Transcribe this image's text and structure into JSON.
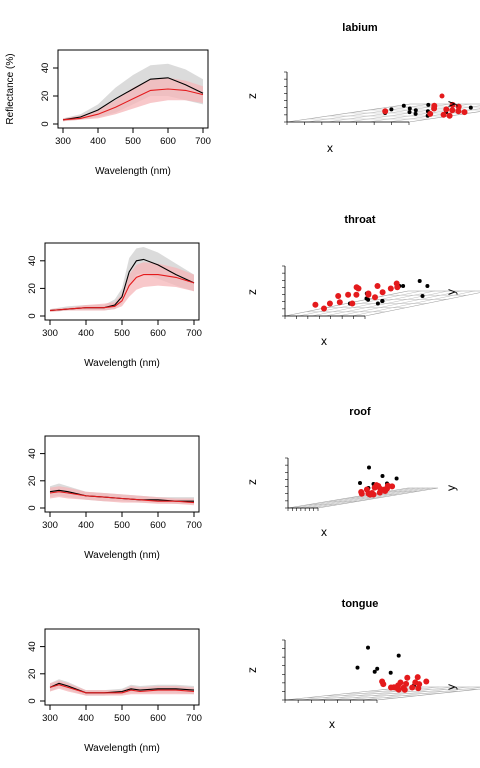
{
  "chart_data": [
    {
      "type": "area",
      "panel": "spectra",
      "xlabel": "Wavelength (nm)",
      "ylabel": "Reflectance (%)",
      "xticks": [
        300,
        400,
        500,
        600,
        700
      ],
      "yticks": [
        0,
        20,
        40
      ],
      "xlim": [
        300,
        700
      ],
      "ylim": [
        0,
        50
      ],
      "x": [
        300,
        350,
        400,
        450,
        500,
        550,
        600,
        650,
        700
      ],
      "series": [
        {
          "color": "#000000",
          "band": "#cfcfcf",
          "mean": [
            3,
            5,
            10,
            18,
            25,
            32,
            33,
            28,
            22
          ],
          "lower": [
            2,
            3,
            5,
            8,
            14,
            20,
            20,
            17,
            14
          ],
          "upper": [
            4,
            7,
            14,
            26,
            35,
            42,
            43,
            39,
            32
          ]
        },
        {
          "color": "#e41a1c",
          "band": "#f6b6b8",
          "mean": [
            3,
            4,
            7,
            12,
            18,
            24,
            25,
            24,
            21
          ],
          "lower": [
            2,
            3,
            4,
            7,
            11,
            15,
            17,
            17,
            15
          ],
          "upper": [
            4,
            6,
            10,
            17,
            26,
            32,
            33,
            31,
            27
          ]
        }
      ]
    },
    {
      "type": "scatter",
      "panel": "3d",
      "title": "labium",
      "axis_labels": {
        "x": "x",
        "y": "y",
        "z": "z"
      },
      "series": [
        {
          "color": "#000000",
          "points": [
            [
              0.05,
              0.9,
              0.0
            ],
            [
              0.15,
              0.7,
              0.0
            ],
            [
              0.2,
              0.95,
              0.0
            ],
            [
              0.25,
              0.75,
              0.0
            ],
            [
              0.3,
              0.5,
              0.0
            ],
            [
              0.35,
              0.85,
              0.0
            ],
            [
              0.4,
              0.65,
              0.0
            ],
            [
              0.45,
              0.55,
              0.0
            ],
            [
              0.5,
              0.9,
              0.0
            ],
            [
              0.55,
              0.6,
              0.0
            ],
            [
              0.6,
              0.45,
              0.0
            ],
            [
              0.7,
              0.8,
              0.0
            ],
            [
              0.75,
              0.55,
              0.0
            ],
            [
              0.8,
              0.35,
              0.0
            ]
          ]
        },
        {
          "color": "#e41a1c",
          "points": [
            [
              0.2,
              0.6,
              0.0
            ],
            [
              0.3,
              0.9,
              0.0
            ],
            [
              0.4,
              0.95,
              0.0
            ],
            [
              0.45,
              0.75,
              0.0
            ],
            [
              0.55,
              0.85,
              0.0
            ],
            [
              0.6,
              0.7,
              0.0
            ],
            [
              0.65,
              0.95,
              0.0
            ],
            [
              0.7,
              0.65,
              0.0
            ],
            [
              0.75,
              0.85,
              0.0
            ],
            [
              0.8,
              0.6,
              0.0
            ],
            [
              0.85,
              0.75,
              0.0
            ],
            [
              0.9,
              0.55,
              0.0
            ],
            [
              0.95,
              0.7,
              0.0
            ],
            [
              0.88,
              0.4,
              0.0
            ],
            [
              0.72,
              0.45,
              0.0
            ],
            [
              0.98,
              0.35,
              0.0
            ]
          ]
        }
      ]
    },
    {
      "type": "area",
      "panel": "spectra",
      "xlabel": "Wavelength (nm)",
      "xticks": [
        300,
        400,
        500,
        600,
        700
      ],
      "yticks": [
        0,
        20,
        40
      ],
      "xlim": [
        300,
        700
      ],
      "ylim": [
        0,
        50
      ],
      "x": [
        300,
        350,
        400,
        450,
        480,
        500,
        520,
        540,
        560,
        600,
        650,
        700
      ],
      "series": [
        {
          "color": "#000000",
          "band": "#cfcfcf",
          "mean": [
            4,
            5,
            6,
            6,
            8,
            14,
            32,
            40,
            41,
            37,
            30,
            24
          ],
          "lower": [
            3,
            4,
            4,
            4,
            5,
            9,
            22,
            30,
            31,
            27,
            22,
            18
          ],
          "upper": [
            5,
            7,
            8,
            8,
            12,
            20,
            42,
            49,
            50,
            46,
            38,
            30
          ]
        },
        {
          "color": "#e41a1c",
          "band": "#f6b6b8",
          "mean": [
            4,
            5,
            6,
            6,
            7,
            11,
            22,
            28,
            30,
            30,
            28,
            24
          ],
          "lower": [
            3,
            4,
            4,
            4,
            5,
            7,
            14,
            19,
            21,
            22,
            21,
            18
          ],
          "upper": [
            5,
            6,
            8,
            9,
            10,
            16,
            30,
            37,
            39,
            38,
            35,
            30
          ]
        }
      ]
    },
    {
      "type": "scatter",
      "panel": "3d",
      "title": "throat",
      "axis_labels": {
        "x": "x",
        "y": "y",
        "z": "z"
      },
      "series": [
        {
          "color": "#000000",
          "points": [
            [
              0.1,
              0.6,
              0.3
            ],
            [
              0.2,
              0.8,
              0.4
            ],
            [
              0.25,
              0.5,
              0.2
            ],
            [
              0.3,
              0.9,
              0.5
            ],
            [
              0.35,
              0.3,
              0.2
            ],
            [
              0.4,
              0.7,
              0.5
            ],
            [
              0.45,
              0.5,
              0.1
            ],
            [
              0.5,
              0.35,
              0.3
            ],
            [
              0.55,
              0.8,
              0.4
            ],
            [
              0.6,
              0.4,
              0.2
            ],
            [
              0.95,
              0.5,
              0.3
            ],
            [
              0.7,
              0.3,
              0.2
            ]
          ]
        },
        {
          "color": "#e41a1c",
          "points": [
            [
              0.05,
              0.4,
              0.4
            ],
            [
              0.08,
              0.7,
              0.5
            ],
            [
              0.1,
              0.3,
              0.2
            ],
            [
              0.12,
              0.6,
              0.3
            ],
            [
              0.15,
              0.5,
              0.6
            ],
            [
              0.18,
              0.2,
              0.1
            ],
            [
              0.2,
              0.45,
              0.4
            ],
            [
              0.22,
              0.65,
              0.3
            ],
            [
              0.25,
              0.35,
              0.5
            ],
            [
              0.28,
              0.55,
              0.2
            ],
            [
              0.3,
              0.25,
              0.3
            ],
            [
              0.32,
              0.7,
              0.6
            ],
            [
              0.35,
              0.45,
              0.4
            ],
            [
              0.38,
              0.3,
              0.2
            ],
            [
              0.4,
              0.6,
              0.5
            ],
            [
              0.15,
              0.15,
              0.3
            ],
            [
              0.25,
              0.75,
              0.4
            ],
            [
              0.05,
              0.55,
              0.6
            ]
          ]
        }
      ]
    },
    {
      "type": "area",
      "panel": "spectra",
      "xlabel": "Wavelength (nm)",
      "xticks": [
        300,
        400,
        500,
        600,
        700
      ],
      "yticks": [
        0,
        20,
        40
      ],
      "xlim": [
        300,
        700
      ],
      "ylim": [
        0,
        50
      ],
      "x": [
        300,
        325,
        350,
        400,
        450,
        500,
        550,
        600,
        650,
        700
      ],
      "series": [
        {
          "color": "#000000",
          "band": "#cfcfcf",
          "mean": [
            12,
            13,
            12,
            9,
            8,
            7,
            6,
            6,
            5,
            5
          ],
          "lower": [
            8,
            9,
            8,
            6,
            5,
            5,
            4,
            4,
            3,
            3
          ],
          "upper": [
            16,
            18,
            16,
            12,
            11,
            10,
            9,
            8,
            8,
            8
          ]
        },
        {
          "color": "#e41a1c",
          "band": "#f6b6b8",
          "mean": [
            11,
            12,
            11,
            9,
            8,
            7,
            6,
            5,
            5,
            4
          ],
          "lower": [
            7,
            8,
            7,
            6,
            5,
            4,
            4,
            3,
            3,
            2
          ],
          "upper": [
            15,
            16,
            15,
            12,
            11,
            10,
            9,
            8,
            7,
            7
          ]
        }
      ]
    },
    {
      "type": "scatter",
      "panel": "3d",
      "title": "roof",
      "axis_labels": {
        "x": "x",
        "y": "y",
        "z": "z"
      },
      "series": [
        {
          "color": "#000000",
          "points": [
            [
              0.3,
              0.6,
              0.95
            ],
            [
              0.35,
              0.7,
              0.6
            ],
            [
              0.4,
              0.5,
              0.5
            ],
            [
              0.42,
              0.8,
              0.45
            ],
            [
              0.45,
              0.6,
              0.4
            ],
            [
              0.5,
              0.7,
              0.35
            ],
            [
              0.48,
              0.55,
              0.3
            ]
          ]
        },
        {
          "color": "#e41a1c",
          "points": [
            [
              0.4,
              0.6,
              0.1
            ],
            [
              0.42,
              0.7,
              0.15
            ],
            [
              0.44,
              0.5,
              0.2
            ],
            [
              0.46,
              0.65,
              0.08
            ],
            [
              0.48,
              0.55,
              0.12
            ],
            [
              0.5,
              0.7,
              0.18
            ],
            [
              0.45,
              0.6,
              0.05
            ],
            [
              0.43,
              0.55,
              0.25
            ],
            [
              0.47,
              0.75,
              0.22
            ],
            [
              0.41,
              0.65,
              0.3
            ],
            [
              0.49,
              0.6,
              0.28
            ],
            [
              0.44,
              0.7,
              0.1
            ],
            [
              0.46,
              0.5,
              0.14
            ],
            [
              0.48,
              0.65,
              0.2
            ],
            [
              0.42,
              0.58,
              0.06
            ],
            [
              0.5,
              0.55,
              0.1
            ],
            [
              0.45,
              0.72,
              0.26
            ],
            [
              0.47,
              0.62,
              0.35
            ]
          ]
        }
      ]
    },
    {
      "type": "area",
      "panel": "spectra",
      "xlabel": "Wavelength (nm)",
      "xticks": [
        300,
        400,
        500,
        600,
        700
      ],
      "yticks": [
        0,
        20,
        40
      ],
      "xlim": [
        300,
        700
      ],
      "ylim": [
        0,
        50
      ],
      "x": [
        300,
        325,
        350,
        400,
        450,
        500,
        525,
        550,
        600,
        650,
        700
      ],
      "series": [
        {
          "color": "#000000",
          "band": "#cfcfcf",
          "mean": [
            10,
            13,
            11,
            6,
            6,
            7,
            9,
            8,
            9,
            9,
            8
          ],
          "lower": [
            7,
            10,
            8,
            4,
            4,
            5,
            6,
            6,
            6,
            6,
            5
          ],
          "upper": [
            13,
            16,
            14,
            8,
            8,
            9,
            12,
            11,
            12,
            12,
            11
          ]
        },
        {
          "color": "#e41a1c",
          "band": "#f6b6b8",
          "mean": [
            10,
            12,
            10,
            6,
            6,
            6,
            8,
            7,
            8,
            8,
            7
          ],
          "lower": [
            7,
            9,
            7,
            4,
            4,
            4,
            5,
            5,
            5,
            5,
            5
          ],
          "upper": [
            13,
            15,
            13,
            8,
            8,
            8,
            11,
            10,
            11,
            11,
            10
          ]
        }
      ]
    },
    {
      "type": "scatter",
      "panel": "3d",
      "title": "tongue",
      "axis_labels": {
        "x": "x",
        "y": "y",
        "z": "z"
      },
      "series": [
        {
          "color": "#000000",
          "points": [
            [
              0.1,
              0.6,
              0.95
            ],
            [
              0.12,
              0.5,
              0.55
            ],
            [
              0.2,
              0.6,
              0.5
            ],
            [
              0.24,
              0.55,
              0.45
            ],
            [
              0.28,
              0.65,
              0.4
            ],
            [
              0.3,
              0.7,
              0.75
            ],
            [
              0.6,
              0.6,
              0.15
            ]
          ]
        },
        {
          "color": "#e41a1c",
          "points": [
            [
              0.35,
              0.6,
              0.1
            ],
            [
              0.38,
              0.7,
              0.15
            ],
            [
              0.4,
              0.5,
              0.2
            ],
            [
              0.42,
              0.65,
              0.08
            ],
            [
              0.45,
              0.55,
              0.12
            ],
            [
              0.48,
              0.7,
              0.18
            ],
            [
              0.5,
              0.6,
              0.05
            ],
            [
              0.52,
              0.55,
              0.22
            ],
            [
              0.55,
              0.68,
              0.15
            ],
            [
              0.58,
              0.6,
              0.1
            ],
            [
              0.36,
              0.52,
              0.25
            ],
            [
              0.44,
              0.75,
              0.28
            ],
            [
              0.5,
              0.62,
              0.3
            ],
            [
              0.46,
              0.58,
              0.06
            ],
            [
              0.6,
              0.7,
              0.2
            ],
            [
              0.4,
              0.62,
              0.14
            ],
            [
              0.54,
              0.5,
              0.12
            ],
            [
              0.62,
              0.62,
              0.08
            ]
          ]
        }
      ]
    }
  ]
}
